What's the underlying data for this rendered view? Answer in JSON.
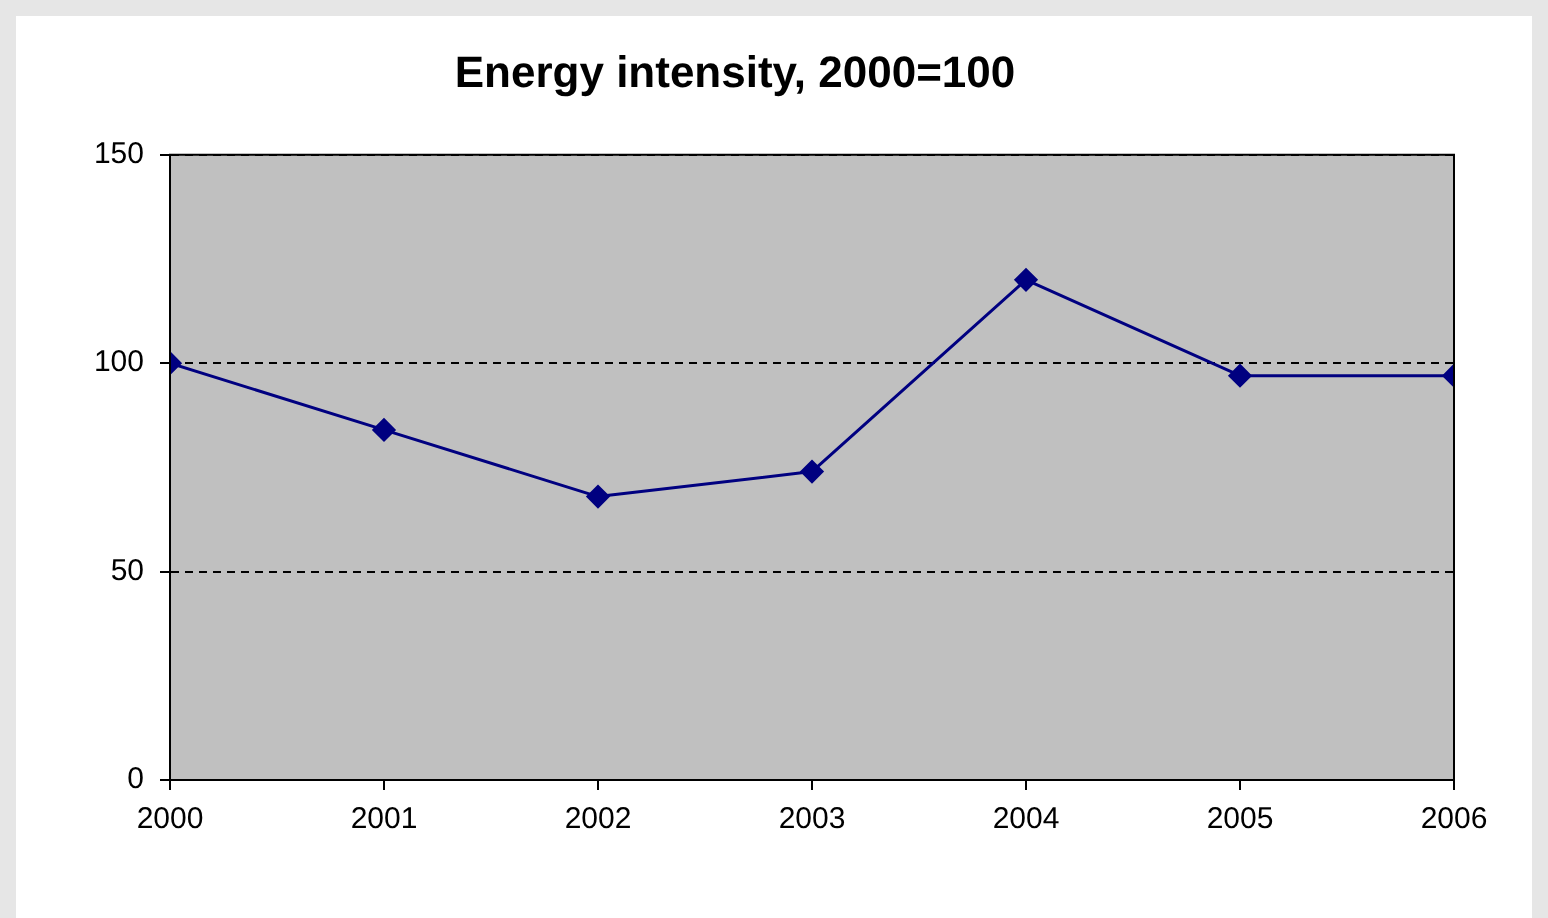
{
  "chart_data": {
    "type": "line",
    "title": "Energy intensity, 2000=100",
    "x": [
      2000,
      2001,
      2002,
      2003,
      2004,
      2005,
      2006
    ],
    "series": [
      {
        "color": "#000080",
        "values": [
          100,
          84,
          68,
          74,
          120,
          97,
          97
        ]
      }
    ],
    "xlim": [
      2000,
      2006
    ],
    "xticks": [
      2000,
      2001,
      2002,
      2003,
      2004,
      2005,
      2006
    ],
    "ylim": [
      0,
      150
    ],
    "yticks": [
      0,
      50,
      100,
      150
    ],
    "grid": "y",
    "legend": false,
    "marker": "diamond",
    "line_style": "solid"
  }
}
